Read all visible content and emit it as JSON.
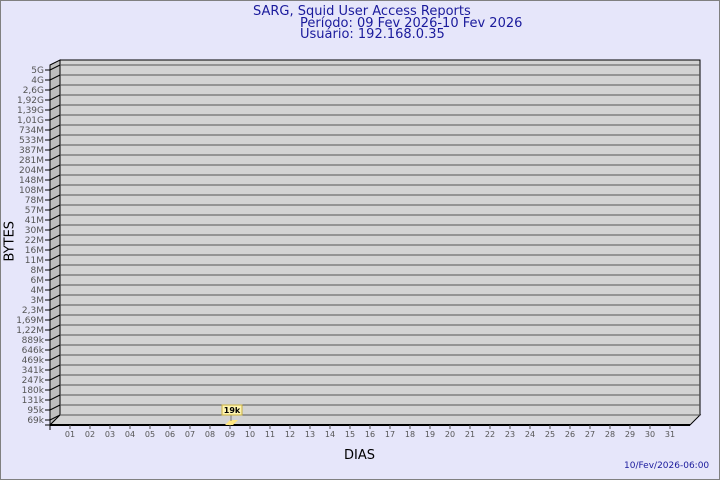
{
  "chart_data": {
    "type": "bar",
    "title": "SARG, Squid User Access Reports",
    "subtitle_period": "Período: 09 Fev 2026-10 Fev 2026",
    "subtitle_user": "Usuário: 192.168.0.35",
    "xlabel": "DIAS",
    "ylabel": "BYTES",
    "y_scale": "log-like",
    "y_ticks": [
      "5G",
      "4G",
      "2,6G",
      "1,92G",
      "1,39G",
      "1,01G",
      "734M",
      "533M",
      "387M",
      "281M",
      "204M",
      "148M",
      "108M",
      "78M",
      "57M",
      "41M",
      "30M",
      "22M",
      "16M",
      "11M",
      "8M",
      "6M",
      "4M",
      "3M",
      "2,3M",
      "1,69M",
      "1,22M",
      "889k",
      "646k",
      "469k",
      "341k",
      "247k",
      "180k",
      "131k",
      "95k",
      "69k"
    ],
    "categories": [
      "01",
      "02",
      "03",
      "04",
      "05",
      "06",
      "07",
      "08",
      "09",
      "10",
      "11",
      "12",
      "13",
      "14",
      "15",
      "16",
      "17",
      "18",
      "19",
      "20",
      "21",
      "22",
      "23",
      "24",
      "25",
      "26",
      "27",
      "28",
      "29",
      "30",
      "31"
    ],
    "bars": [
      {
        "category": "09",
        "label": "19k"
      }
    ],
    "grid": true,
    "colors": {
      "background": "#e6e6fa",
      "plot": "#d3d3d3",
      "bar": "#ffe680",
      "text": "#1a1a9c"
    }
  },
  "footer": {
    "timestamp": "10/Fev/2026-06:00"
  }
}
